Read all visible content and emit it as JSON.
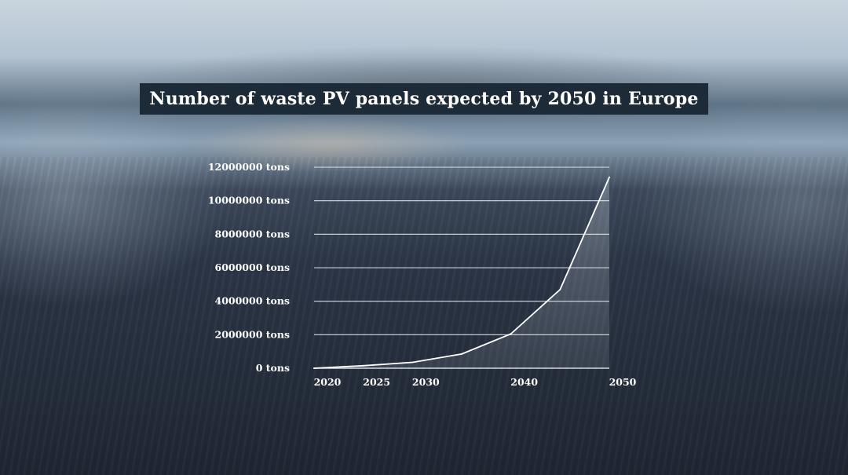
{
  "chart_data": {
    "type": "area",
    "title": "Number of waste PV panels expected by 2050 in Europe",
    "x": [
      2020,
      2025,
      2030,
      2035,
      2040,
      2045,
      2050
    ],
    "y": [
      0,
      150000,
      350000,
      850000,
      2050000,
      4700000,
      11400000
    ],
    "x_ticks": [
      2020,
      2025,
      2030,
      2040,
      2050
    ],
    "x_tick_labels": [
      "2020",
      "2025",
      "2030",
      "2040",
      "2050"
    ],
    "y_ticks": [
      0,
      2000000,
      4000000,
      6000000,
      8000000,
      10000000,
      12000000
    ],
    "y_tick_labels": [
      "0 tons",
      "2000000 tons",
      "4000000 tons",
      "6000000 tons",
      "8000000 tons",
      "10000000 tons",
      "12000000 tons"
    ],
    "xlim": [
      2020,
      2050
    ],
    "ylim": [
      0,
      12000000
    ],
    "xlabel": "",
    "ylabel": "",
    "grid": "horizontal",
    "legend": "none",
    "colors": {
      "line": "#ffffff",
      "grid": "#e8edf2",
      "title_bg": "#1d2b38"
    }
  }
}
